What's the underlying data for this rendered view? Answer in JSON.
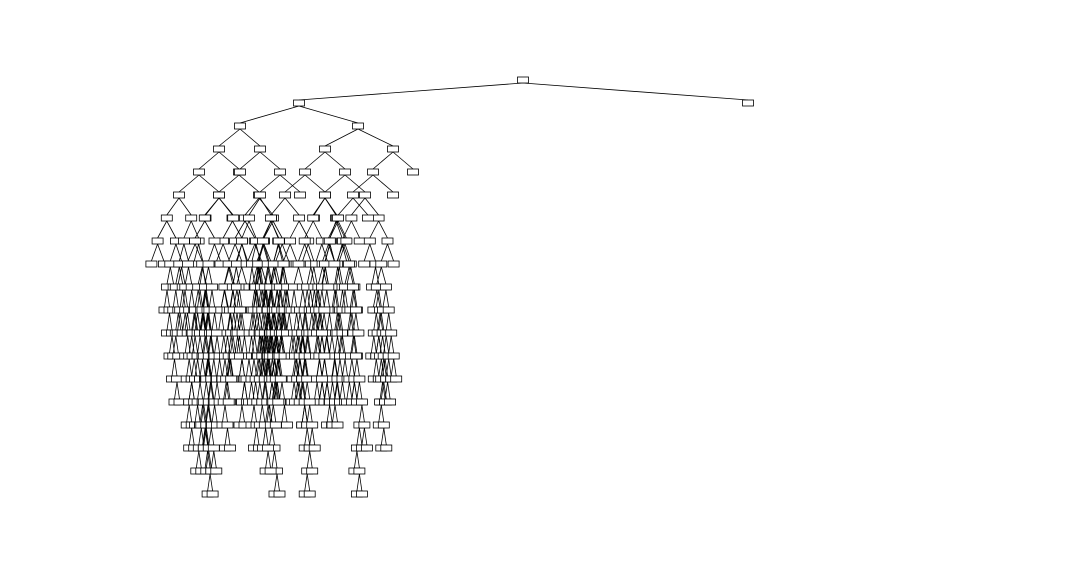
{
  "figure": {
    "type": "decision-tree",
    "node_fill": "#ffffff",
    "node_stroke": "#000000",
    "edge_color": "#000000",
    "max_depth": 18
  }
}
